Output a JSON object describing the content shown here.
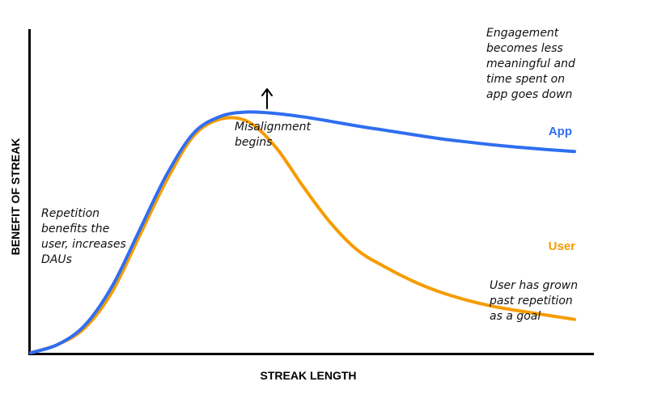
{
  "chart_data": {
    "type": "line",
    "title": "",
    "xlabel": "STREAK LENGTH",
    "ylabel": "BENEFIT OF STREAK",
    "xlim": [
      0,
      100
    ],
    "ylim": [
      0,
      100
    ],
    "grid": false,
    "legend": "inline labels at line ends",
    "series": [
      {
        "name": "App",
        "color": "#2f6ef0",
        "x": [
          0,
          5,
          10,
          15,
          20,
          25,
          30,
          35,
          40,
          45,
          50,
          55,
          60,
          65,
          70,
          75,
          80,
          85,
          90,
          95,
          100
        ],
        "y": [
          0,
          3,
          10,
          24,
          44,
          64,
          79,
          85,
          86.5,
          86,
          84.8,
          83.2,
          81.5,
          80,
          78.5,
          77,
          75.8,
          74.7,
          73.8,
          73,
          72.3
        ]
      },
      {
        "name": "User",
        "color": "#f59c00",
        "x": [
          0,
          5,
          10,
          15,
          20,
          25,
          30,
          35,
          40,
          45,
          50,
          55,
          60,
          65,
          70,
          75,
          80,
          85,
          90,
          95,
          100
        ],
        "y": [
          0,
          3,
          9,
          22,
          42,
          62,
          78,
          84,
          83,
          74,
          60,
          47,
          37,
          31,
          26,
          22,
          19,
          16.7,
          15,
          13.5,
          12
        ]
      }
    ],
    "annotations": [
      {
        "id": "misalignment",
        "lines": [
          "Misalignment",
          "begins"
        ],
        "arrow": true
      },
      {
        "id": "engagement",
        "lines": [
          "Engagement",
          "becomes less",
          "meaningful and",
          "time spent on",
          "app goes down"
        ]
      },
      {
        "id": "repetition",
        "lines": [
          "Repetition",
          "benefits the",
          "user, increases",
          "DAUs"
        ]
      },
      {
        "id": "grown",
        "lines": [
          "User has grown",
          "past repetition",
          "as a goal"
        ]
      }
    ]
  }
}
